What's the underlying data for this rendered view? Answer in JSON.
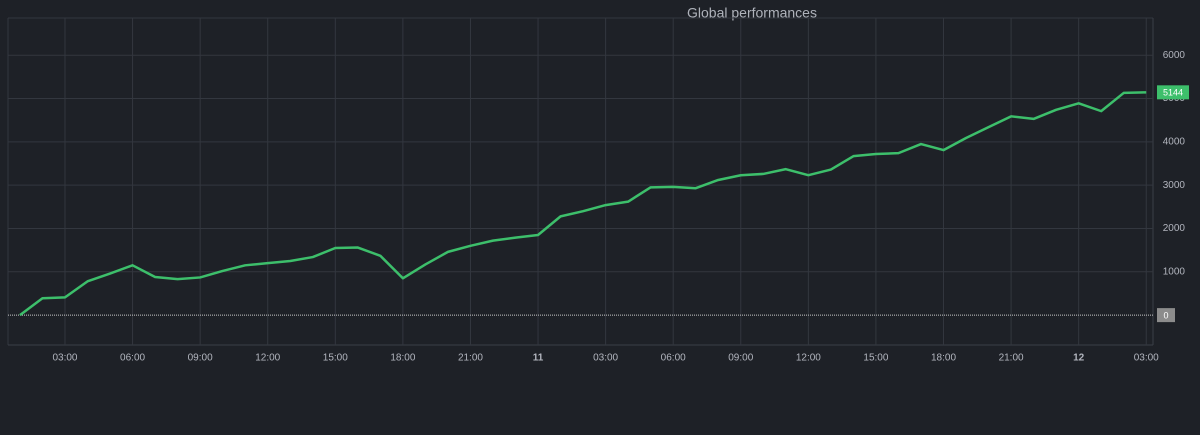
{
  "chart_data": {
    "type": "line",
    "title": "Global performances",
    "x": [
      1,
      2,
      3,
      4,
      5,
      6,
      7,
      8,
      9,
      10,
      11,
      12,
      13,
      14,
      15,
      16,
      17,
      18,
      19,
      20,
      21,
      22,
      23,
      24,
      25,
      26,
      27,
      28,
      29,
      30,
      31,
      32,
      33,
      34,
      35,
      36,
      37,
      38,
      39,
      40,
      41,
      42,
      43,
      44,
      45,
      46,
      47,
      48,
      49,
      50,
      51
    ],
    "series": [
      {
        "color": "#3dbf6b",
        "values": [
          0,
          390,
          410,
          780,
          960,
          1150,
          880,
          830,
          870,
          1020,
          1150,
          1200,
          1250,
          1340,
          1550,
          1560,
          1370,
          850,
          1170,
          1460,
          1600,
          1720,
          1790,
          1850,
          2280,
          2400,
          2540,
          2620,
          2950,
          2960,
          2930,
          3120,
          3230,
          3260,
          3370,
          3230,
          3360,
          3670,
          3720,
          3740,
          3950,
          3810,
          4090,
          4340,
          4590,
          4530,
          4740,
          4890,
          4710,
          5130,
          5144
        ]
      }
    ],
    "xlim": [
      0.47,
      51.3
    ],
    "xticks": [
      {
        "value": 3,
        "label": "03:00"
      },
      {
        "value": 6,
        "label": "06:00"
      },
      {
        "value": 9,
        "label": "09:00"
      },
      {
        "value": 12,
        "label": "12:00"
      },
      {
        "value": 15,
        "label": "15:00"
      },
      {
        "value": 18,
        "label": "18:00"
      },
      {
        "value": 21,
        "label": "21:00"
      },
      {
        "value": 24,
        "label": "11"
      },
      {
        "value": 27,
        "label": "03:00"
      },
      {
        "value": 30,
        "label": "06:00"
      },
      {
        "value": 33,
        "label": "09:00"
      },
      {
        "value": 36,
        "label": "12:00"
      },
      {
        "value": 39,
        "label": "15:00"
      },
      {
        "value": 42,
        "label": "18:00"
      },
      {
        "value": 45,
        "label": "21:00"
      },
      {
        "value": 48,
        "label": "12"
      },
      {
        "value": 51,
        "label": "03:00"
      }
    ],
    "ylim": [
      -690,
      6860
    ],
    "yticks": [
      0,
      1000,
      2000,
      3000,
      4000,
      5000,
      6000
    ],
    "grid": true
  }
}
